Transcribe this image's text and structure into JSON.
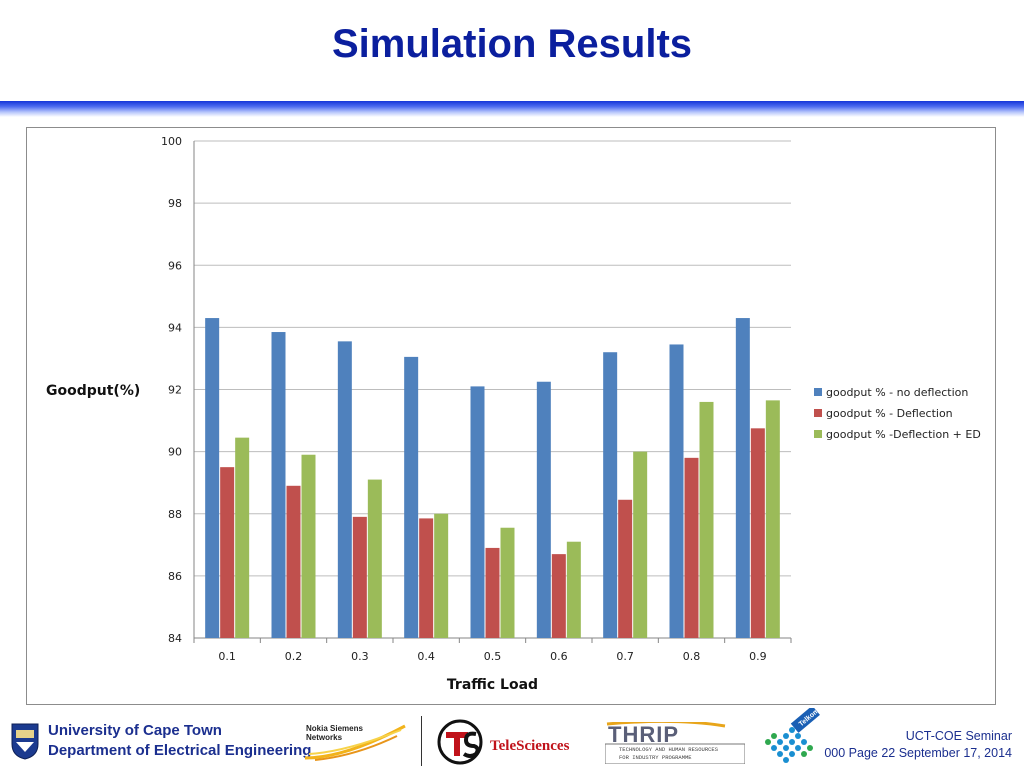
{
  "slide": {
    "title": "Simulation Results"
  },
  "footer": {
    "uct_line1": "University of Cape Town",
    "uct_line2": "Department of Electrical Engineering",
    "nsn_line1": "Nokia Siemens",
    "nsn_line2": "Networks",
    "teleSciences": "TeleSciences",
    "thrip": "THRIP",
    "thrip_sub1": "TECHNOLOGY AND HUMAN RESOURCES",
    "thrip_sub2": "FOR INDUSTRY PROGRAMME",
    "telkom": "Telkom",
    "seminar_line1": "UCT-COE Seminar",
    "seminar_line2": "000 Page 22 September 17, 2014"
  },
  "colors": {
    "title": "#0b1f9e",
    "series": [
      "#4f81bd",
      "#c0504d",
      "#9bbb59"
    ]
  },
  "chart_data": {
    "type": "bar",
    "title": "",
    "xlabel": "Traffic Load",
    "ylabel": "Goodput(%)",
    "ylim": [
      84,
      100
    ],
    "yticks": [
      84,
      86,
      88,
      90,
      92,
      94,
      96,
      98,
      100
    ],
    "grid": true,
    "legend_position": "right",
    "categories": [
      "0.1",
      "0.2",
      "0.3",
      "0.4",
      "0.5",
      "0.6",
      "0.7",
      "0.8",
      "0.9"
    ],
    "series": [
      {
        "name": "goodput % - no deflection",
        "values": [
          94.3,
          93.85,
          93.55,
          93.05,
          92.1,
          92.25,
          93.2,
          93.45,
          94.3
        ]
      },
      {
        "name": "goodput % - Deflection",
        "values": [
          89.5,
          88.9,
          87.9,
          87.85,
          86.9,
          86.7,
          88.45,
          89.8,
          90.75
        ]
      },
      {
        "name": "goodput % -Deflection + ED",
        "values": [
          90.45,
          89.9,
          89.1,
          88.0,
          87.55,
          87.1,
          90.0,
          91.6,
          91.65
        ]
      }
    ]
  }
}
